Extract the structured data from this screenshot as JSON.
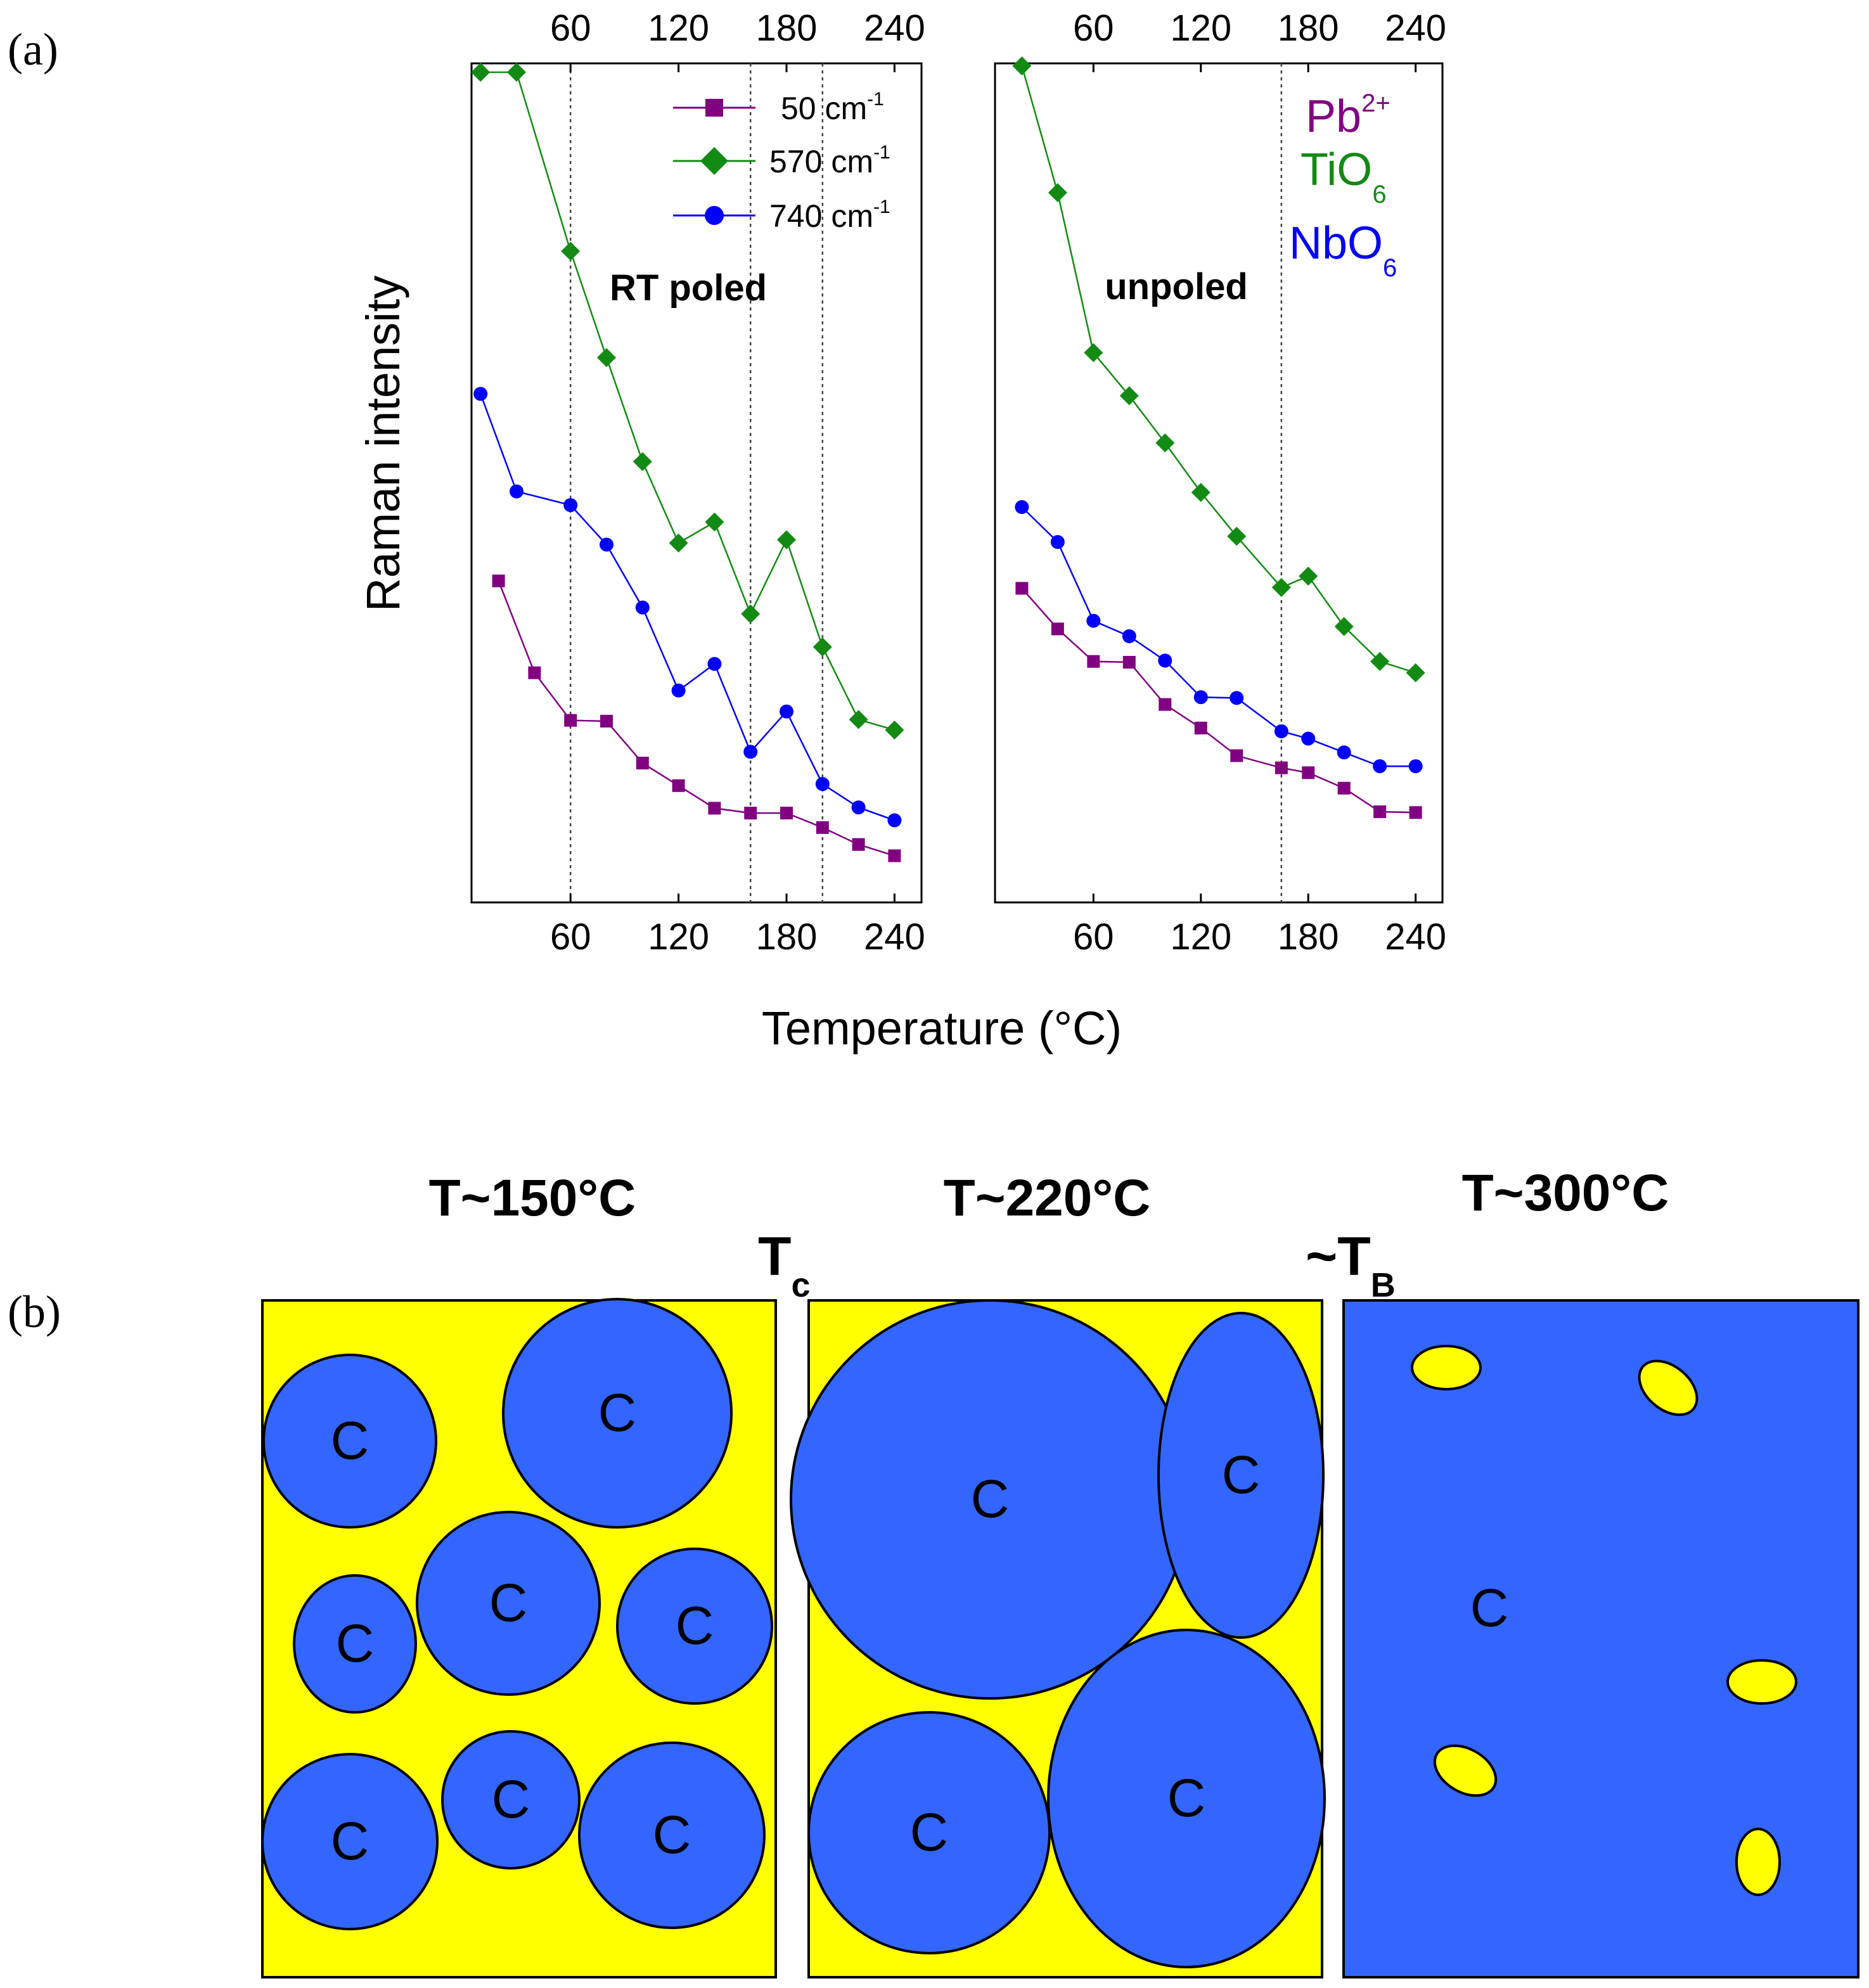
{
  "panel_labels": {
    "a": "(a)",
    "b": "(b)"
  },
  "colors": {
    "pb": "#800080",
    "tio": "#138a13",
    "nbo": "#0000ff",
    "cubic": "#3366ff",
    "matrix": "#ffff00"
  },
  "chart_data": [
    {
      "type": "line",
      "panel": "RT poled",
      "annotation": "RT poled",
      "xlabel": "Temperature (°C)",
      "ylabel": "Raman intensity",
      "xlim": [
        5,
        255
      ],
      "ylim": [
        0,
        1
      ],
      "xticks": [
        60,
        120,
        180,
        240
      ],
      "xtick_labels": [
        "60",
        "120",
        "180",
        "240"
      ],
      "y_units": "arbitrary (normalized, no tick labels)",
      "vlines": [
        60,
        160,
        200
      ],
      "legend": [
        {
          "label": "50 cm",
          "sup": "-1",
          "series": "50 cm-1",
          "marker": "square"
        },
        {
          "label": "570 cm",
          "sup": "-1",
          "series": "570 cm-1",
          "marker": "diamond"
        },
        {
          "label": "740 cm",
          "sup": "-1",
          "series": "740 cm-1",
          "marker": "circle"
        }
      ],
      "series": [
        {
          "name": "50 cm-1",
          "marker": "square",
          "color": "#800080",
          "x": [
            20,
            40,
            60,
            80,
            100,
            120,
            140,
            160,
            180,
            200,
            220,
            240
          ],
          "y": [
            0.369,
            0.255,
            0.196,
            0.195,
            0.143,
            0.115,
            0.087,
            0.081,
            0.081,
            0.063,
            0.042,
            0.028
          ]
        },
        {
          "name": "570 cm-1",
          "marker": "diamond",
          "color": "#138a13",
          "x": [
            10,
            30,
            60,
            80,
            100,
            120,
            140,
            160,
            180,
            200,
            220,
            240
          ],
          "y": [
            1.0,
            1.0,
            0.778,
            0.646,
            0.517,
            0.416,
            0.442,
            0.328,
            0.42,
            0.287,
            0.197,
            0.184
          ]
        },
        {
          "name": "740 cm-1",
          "marker": "circle",
          "color": "#0000ff",
          "x": [
            10,
            30,
            60,
            80,
            100,
            120,
            140,
            160,
            180,
            200,
            220,
            240
          ],
          "y": [
            0.601,
            0.48,
            0.463,
            0.414,
            0.336,
            0.233,
            0.266,
            0.157,
            0.207,
            0.117,
            0.088,
            0.072
          ]
        }
      ]
    },
    {
      "type": "line",
      "panel": "unpoled",
      "annotation": "unpoled",
      "xlabel": "Temperature (°C)",
      "ylabel": "Raman intensity",
      "xlim": [
        5,
        255
      ],
      "ylim": [
        0,
        1
      ],
      "xticks": [
        60,
        120,
        180,
        240
      ],
      "xtick_labels": [
        "60",
        "120",
        "180",
        "240"
      ],
      "y_units": "arbitrary (normalized, no tick labels)",
      "vlines": [
        165
      ],
      "ion_labels": [
        {
          "text": "Pb",
          "sup": "2+",
          "sub": "",
          "color": "#800080"
        },
        {
          "text": "TiO",
          "sup": "",
          "sub": "6",
          "color": "#138a13"
        },
        {
          "text": "NbO",
          "sup": "",
          "sub": "6",
          "color": "#0000ff"
        }
      ],
      "series": [
        {
          "name": "50 cm-1",
          "marker": "square",
          "color": "#800080",
          "x": [
            20,
            40,
            60,
            80,
            100,
            120,
            140,
            165,
            180,
            200,
            220,
            240
          ],
          "y": [
            0.357,
            0.307,
            0.267,
            0.266,
            0.214,
            0.185,
            0.151,
            0.136,
            0.13,
            0.111,
            0.082,
            0.081
          ]
        },
        {
          "name": "570 cm-1",
          "marker": "diamond",
          "color": "#138a13",
          "x": [
            20,
            40,
            60,
            80,
            100,
            120,
            140,
            165,
            180,
            200,
            220,
            240
          ],
          "y": [
            1.0,
            0.844,
            0.647,
            0.594,
            0.536,
            0.475,
            0.421,
            0.358,
            0.372,
            0.31,
            0.267,
            0.253
          ]
        },
        {
          "name": "740 cm-1",
          "marker": "circle",
          "color": "#0000ff",
          "x": [
            20,
            40,
            60,
            80,
            100,
            120,
            140,
            165,
            180,
            200,
            220,
            240
          ],
          "y": [
            0.457,
            0.414,
            0.317,
            0.298,
            0.268,
            0.223,
            0.222,
            0.181,
            0.172,
            0.155,
            0.138,
            0.138
          ]
        }
      ]
    }
  ],
  "panel_b": {
    "temperatures": [
      "T~150°C",
      "T~220°C",
      "T~300°C"
    ],
    "transitions": [
      {
        "prefix": "",
        "main": "T",
        "sub": "c"
      },
      {
        "prefix": "~",
        "main": "T",
        "sub": "B"
      }
    ],
    "region_label": "C"
  }
}
